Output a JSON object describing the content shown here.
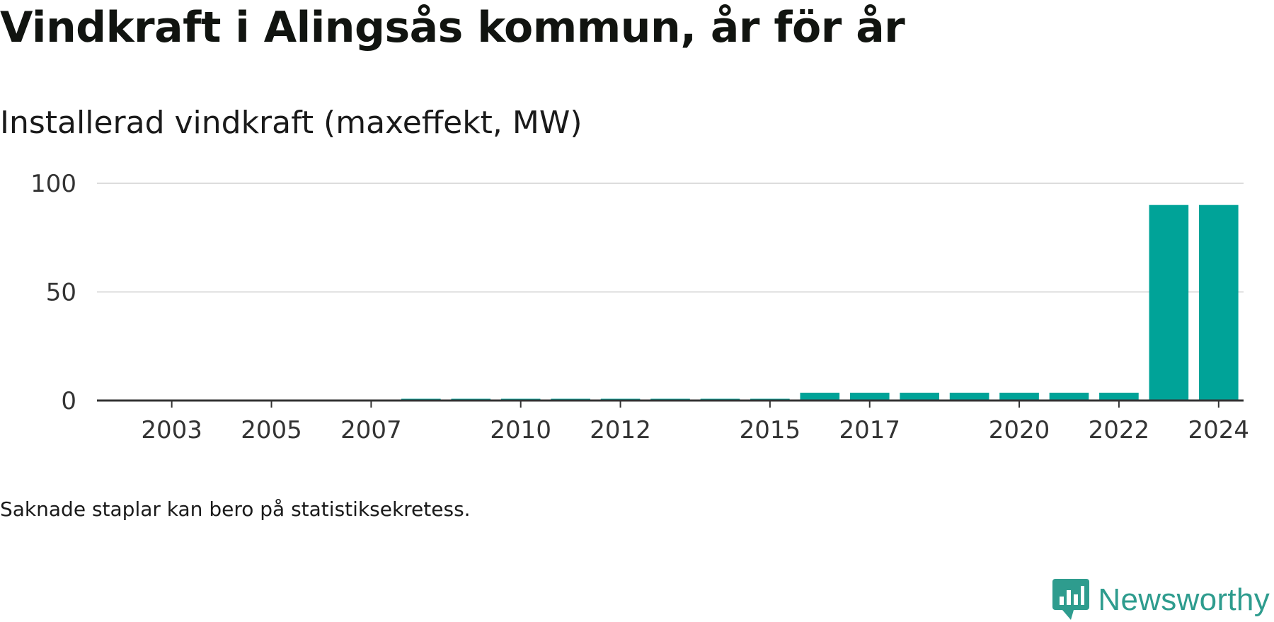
{
  "title": "Vindkraft i Alingsås kommun, år för år",
  "subtitle": "Installerad vindkraft (maxeffekt, MW)",
  "footnote": "Saknade staplar kan bero på statistiksekretess.",
  "brand": {
    "name": "Newsworthy",
    "icon": "newsworthy-logo-icon",
    "color": "#2e9c8e"
  },
  "chart_data": {
    "type": "bar",
    "title": "Vindkraft i Alingsås kommun, år för år",
    "subtitle": "Installerad vindkraft (maxeffekt, MW)",
    "xlabel": "",
    "ylabel": "",
    "categories": [
      2002,
      2003,
      2004,
      2005,
      2006,
      2007,
      2008,
      2009,
      2010,
      2011,
      2012,
      2013,
      2014,
      2015,
      2016,
      2017,
      2018,
      2019,
      2020,
      2021,
      2022,
      2023,
      2024
    ],
    "values": [
      0,
      0,
      0,
      0,
      0,
      0,
      0.8,
      0.8,
      0.8,
      0.8,
      0.8,
      0.8,
      0.8,
      0.8,
      3.6,
      3.6,
      3.6,
      3.6,
      3.6,
      3.6,
      3.6,
      90,
      90
    ],
    "x_tick_labels": [
      "2003",
      "2005",
      "2007",
      "2010",
      "2012",
      "2015",
      "2017",
      "2020",
      "2022",
      "2024"
    ],
    "y_ticks": [
      0,
      50,
      100
    ],
    "ylim": [
      0,
      100
    ],
    "grid": true,
    "bar_color": "#00a398"
  }
}
